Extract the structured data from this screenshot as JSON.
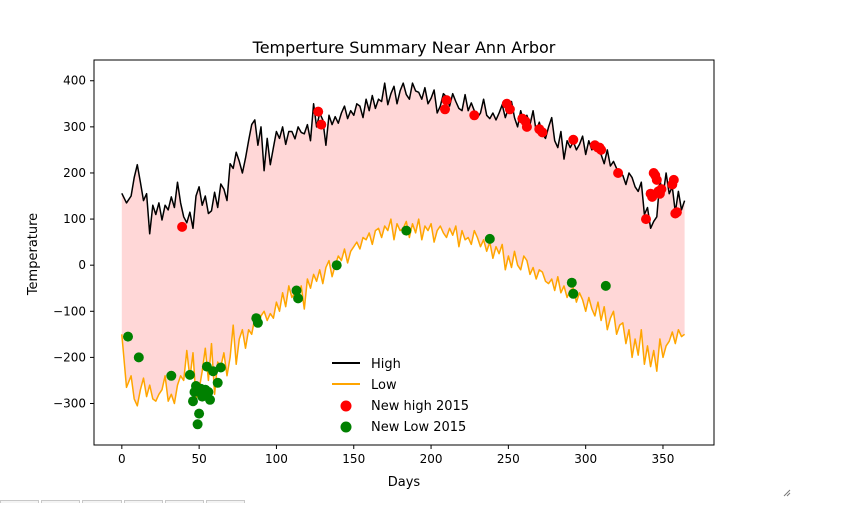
{
  "chart_data": {
    "type": "line",
    "title": "Temperture Summary Near Ann Arbor",
    "xlabel": "Days",
    "ylabel": "Temperature",
    "xlim": [
      -18,
      383
    ],
    "ylim": [
      -390,
      445
    ],
    "xticks": [
      0,
      50,
      100,
      150,
      200,
      250,
      300,
      350
    ],
    "yticks": [
      -300,
      -200,
      -100,
      0,
      100,
      200,
      300,
      400
    ],
    "legend_position": "lower-center",
    "fill_between": {
      "color": "#ffd7d7",
      "between": [
        "High",
        "Low"
      ]
    },
    "series": [
      {
        "name": "High",
        "kind": "line",
        "color": "#000000",
        "x": [
          0,
          3,
          6,
          8,
          10,
          12,
          14,
          16,
          18,
          20,
          22,
          24,
          26,
          28,
          30,
          32,
          34,
          36,
          38,
          40,
          42,
          44,
          46,
          48,
          50,
          52,
          54,
          56,
          58,
          60,
          62,
          64,
          66,
          68,
          70,
          72,
          74,
          76,
          78,
          80,
          82,
          84,
          86,
          88,
          90,
          92,
          94,
          96,
          98,
          100,
          102,
          104,
          106,
          108,
          110,
          112,
          114,
          116,
          118,
          120,
          122,
          124,
          126,
          128,
          130,
          132,
          134,
          136,
          138,
          140,
          142,
          144,
          146,
          148,
          150,
          152,
          154,
          156,
          158,
          160,
          162,
          164,
          166,
          168,
          170,
          172,
          174,
          176,
          178,
          180,
          182,
          184,
          186,
          188,
          190,
          192,
          194,
          196,
          198,
          200,
          202,
          204,
          206,
          208,
          210,
          212,
          214,
          216,
          218,
          220,
          222,
          224,
          226,
          228,
          230,
          232,
          234,
          236,
          238,
          240,
          242,
          244,
          246,
          248,
          250,
          252,
          254,
          256,
          258,
          260,
          262,
          264,
          266,
          268,
          270,
          272,
          274,
          276,
          278,
          280,
          282,
          284,
          286,
          288,
          290,
          292,
          294,
          296,
          298,
          300,
          302,
          304,
          306,
          308,
          310,
          312,
          314,
          316,
          318,
          320,
          322,
          324,
          326,
          328,
          330,
          332,
          334,
          336,
          338,
          340,
          342,
          344,
          346,
          348,
          350,
          352,
          354,
          356,
          358,
          360,
          362,
          364
        ],
        "y": [
          156,
          135,
          150,
          190,
          218,
          180,
          140,
          155,
          68,
          130,
          110,
          135,
          98,
          130,
          120,
          148,
          125,
          180,
          135,
          105,
          92,
          115,
          80,
          150,
          170,
          130,
          150,
          112,
          118,
          158,
          125,
          176,
          165,
          140,
          220,
          210,
          245,
          225,
          200,
          232,
          270,
          305,
          315,
          260,
          300,
          205,
          275,
          218,
          255,
          290,
          275,
          300,
          262,
          290,
          290,
          274,
          300,
          288,
          285,
          305,
          270,
          350,
          300,
          330,
          315,
          260,
          325,
          305,
          322,
          308,
          330,
          345,
          318,
          335,
          325,
          350,
          345,
          320,
          360,
          335,
          368,
          340,
          360,
          355,
          395,
          348,
          372,
          388,
          350,
          378,
          395,
          370,
          360,
          395,
          378,
          375,
          360,
          385,
          350,
          362,
          380,
          330,
          345,
          372,
          365,
          345,
          372,
          355,
          340,
          335,
          370,
          335,
          352,
          335,
          320,
          330,
          360,
          325,
          318,
          330,
          315,
          330,
          348,
          320,
          340,
          355,
          320,
          300,
          335,
          310,
          325,
          305,
          335,
          290,
          310,
          285,
          275,
          300,
          320,
          270,
          255,
          290,
          230,
          270,
          255,
          268,
          250,
          262,
          280,
          240,
          270,
          250,
          260,
          245,
          240,
          220,
          250,
          215,
          225,
          210,
          200,
          195,
          175,
          200,
          190,
          170,
          160,
          180,
          110,
          125,
          80,
          95,
          105,
          185,
          150,
          200,
          155,
          170,
          115,
          160,
          120,
          140
        ]
      },
      {
        "name": "Low",
        "kind": "line",
        "color": "#ffa500",
        "x": [
          0,
          3,
          6,
          8,
          10,
          12,
          14,
          16,
          18,
          20,
          22,
          24,
          26,
          28,
          30,
          32,
          34,
          36,
          38,
          40,
          42,
          44,
          46,
          48,
          50,
          52,
          54,
          56,
          58,
          60,
          62,
          64,
          66,
          68,
          70,
          72,
          74,
          76,
          78,
          80,
          82,
          84,
          86,
          88,
          90,
          92,
          94,
          96,
          98,
          100,
          102,
          104,
          106,
          108,
          110,
          112,
          114,
          116,
          118,
          120,
          122,
          124,
          126,
          128,
          130,
          132,
          134,
          136,
          138,
          140,
          142,
          144,
          146,
          148,
          150,
          152,
          154,
          156,
          158,
          160,
          162,
          164,
          166,
          168,
          170,
          172,
          174,
          176,
          178,
          180,
          182,
          184,
          186,
          188,
          190,
          192,
          194,
          196,
          198,
          200,
          202,
          204,
          206,
          208,
          210,
          212,
          214,
          216,
          218,
          220,
          222,
          224,
          226,
          228,
          230,
          232,
          234,
          236,
          238,
          240,
          242,
          244,
          246,
          248,
          250,
          252,
          254,
          256,
          258,
          260,
          262,
          264,
          266,
          268,
          270,
          272,
          274,
          276,
          278,
          280,
          282,
          284,
          286,
          288,
          290,
          292,
          294,
          296,
          298,
          300,
          302,
          304,
          306,
          308,
          310,
          312,
          314,
          316,
          318,
          320,
          322,
          324,
          326,
          328,
          330,
          332,
          334,
          336,
          338,
          340,
          342,
          344,
          346,
          348,
          350,
          352,
          354,
          356,
          358,
          360,
          362,
          364
        ],
        "y": [
          -150,
          -265,
          -240,
          -290,
          -305,
          -270,
          -245,
          -285,
          -260,
          -290,
          -295,
          -280,
          -270,
          -240,
          -295,
          -280,
          -300,
          -260,
          -240,
          -250,
          -185,
          -245,
          -190,
          -290,
          -270,
          -230,
          -180,
          -250,
          -170,
          -280,
          -210,
          -220,
          -190,
          -240,
          -200,
          -130,
          -215,
          -160,
          -140,
          -180,
          -140,
          -150,
          -115,
          -130,
          -110,
          -100,
          -120,
          -105,
          -115,
          -80,
          -100,
          -60,
          -90,
          -45,
          -70,
          -60,
          -75,
          -45,
          -95,
          -30,
          -50,
          -20,
          -35,
          -10,
          -40,
          -5,
          10,
          -25,
          0,
          20,
          10,
          35,
          5,
          30,
          40,
          50,
          35,
          60,
          55,
          70,
          45,
          75,
          80,
          60,
          85,
          75,
          100,
          55,
          90,
          75,
          80,
          95,
          60,
          90,
          70,
          100,
          55,
          85,
          75,
          90,
          50,
          75,
          85,
          70,
          60,
          80,
          65,
          85,
          40,
          75,
          55,
          60,
          45,
          75,
          60,
          40,
          55,
          30,
          50,
          15,
          40,
          25,
          45,
          -10,
          20,
          -5,
          30,
          0,
          -10,
          20,
          10,
          -20,
          -5,
          -30,
          -10,
          -15,
          -35,
          -40,
          -30,
          -55,
          -25,
          -60,
          -45,
          -70,
          -55,
          -50,
          -80,
          -60,
          -75,
          -100,
          -70,
          -95,
          -110,
          -80,
          -120,
          -90,
          -140,
          -115,
          -100,
          -150,
          -130,
          -125,
          -170,
          -140,
          -200,
          -160,
          -195,
          -140,
          -215,
          -175,
          -220,
          -185,
          -230,
          -160,
          -200,
          -175,
          -165,
          -145,
          -170,
          -140,
          -155,
          -150
        ]
      },
      {
        "name": "New high 2015",
        "kind": "scatter",
        "color": "#ff0000",
        "x": [
          39,
          127,
          129,
          209,
          210,
          228,
          249,
          251,
          259,
          261,
          262,
          270,
          272,
          292,
          306,
          308,
          309,
          310,
          321,
          339,
          342,
          343,
          344,
          345,
          346,
          347,
          348,
          349,
          356,
          357,
          358,
          359
        ],
        "y": [
          83,
          333,
          305,
          338,
          358,
          325,
          350,
          338,
          318,
          312,
          300,
          295,
          288,
          272,
          260,
          255,
          255,
          250,
          200,
          100,
          155,
          148,
          200,
          195,
          185,
          160,
          155,
          165,
          175,
          185,
          112,
          115
        ]
      },
      {
        "name": "New Low 2015",
        "kind": "scatter",
        "color": "#008000",
        "x": [
          4,
          11,
          32,
          44,
          46,
          47,
          48,
          49,
          50,
          51,
          52,
          54,
          55,
          56,
          57,
          59,
          62,
          64,
          87,
          88,
          113,
          114,
          139,
          184,
          238,
          291,
          292,
          313
        ],
        "y": [
          -155,
          -200,
          -240,
          -238,
          -295,
          -275,
          -262,
          -345,
          -322,
          -268,
          -285,
          -270,
          -220,
          -275,
          -292,
          -230,
          -255,
          -222,
          -115,
          -125,
          -55,
          -72,
          0,
          75,
          57,
          -38,
          -62,
          -45
        ]
      }
    ]
  }
}
